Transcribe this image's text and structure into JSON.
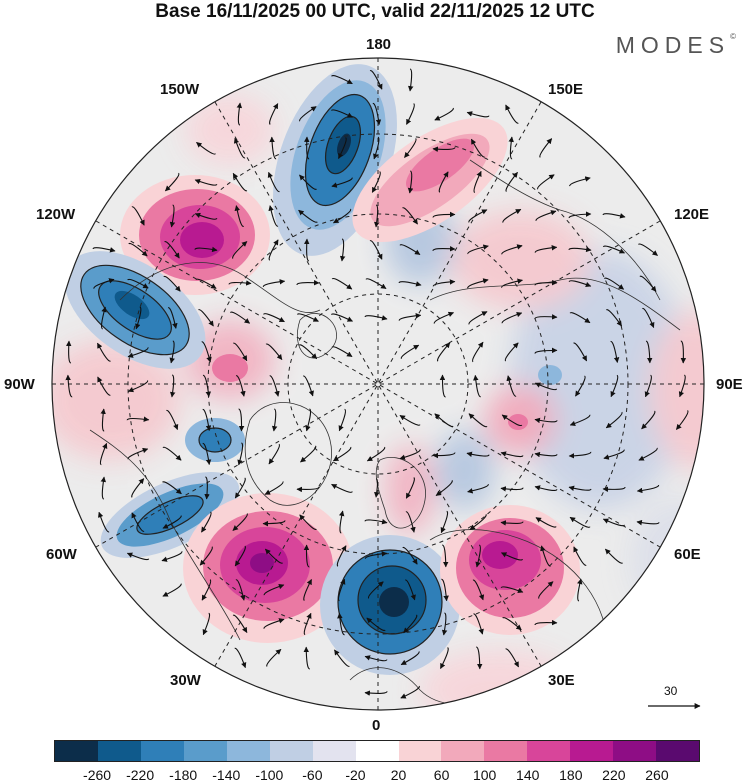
{
  "header": {
    "title": "Base 16/11/2025 00 UTC, valid 22/11/2025 12 UTC",
    "brand": "MODES",
    "brand_mark": "©"
  },
  "map": {
    "projection": "north-polar-stereographic",
    "longitude_labels": {
      "top": "180",
      "bottom": "0",
      "left": "90W",
      "right": "90E",
      "upper_left_1": "150W",
      "upper_left_2": "120W",
      "upper_right_1": "150E",
      "upper_right_2": "120E",
      "lower_left_1": "60W",
      "lower_left_2": "30W",
      "lower_right_1": "60E",
      "lower_right_2": "30E"
    },
    "anomalies": [
      {
        "sign": "negative",
        "value": -260,
        "location": "near 180 over north Pacific"
      },
      {
        "sign": "positive",
        "value": 220,
        "location": "Gulf of Alaska / 130W"
      },
      {
        "sign": "negative",
        "value": -220,
        "location": "western Canada / 110W"
      },
      {
        "sign": "positive",
        "value": 140,
        "location": "north Pacific near 165E"
      },
      {
        "sign": "positive",
        "value": 220,
        "location": "North Atlantic near 45W"
      },
      {
        "sign": "negative",
        "value": -260,
        "location": "northeast Atlantic near 5W"
      },
      {
        "sign": "positive",
        "value": 180,
        "location": "western Russia near 45E"
      },
      {
        "sign": "negative",
        "value": -180,
        "location": "northwest Atlantic / Labrador"
      },
      {
        "sign": "negative",
        "value": -100,
        "location": "central Siberia near 90E"
      }
    ],
    "wind_reference_vector": "30"
  },
  "colorbar": {
    "colors": [
      "#0c2d4a",
      "#0f5a8c",
      "#2f7fb8",
      "#5a9ccb",
      "#8db7dc",
      "#c0cfe4",
      "#e3e3ef",
      "#ffffff",
      "#f9d3d6",
      "#f2a9bb",
      "#ea79a3",
      "#d8459a",
      "#b81a91",
      "#8e0d85",
      "#5a0a6f"
    ],
    "tick_labels": [
      "-260",
      "-220",
      "-180",
      "-140",
      "-100",
      "-60",
      "-20",
      "20",
      "60",
      "100",
      "140",
      "180",
      "220",
      "260"
    ]
  }
}
